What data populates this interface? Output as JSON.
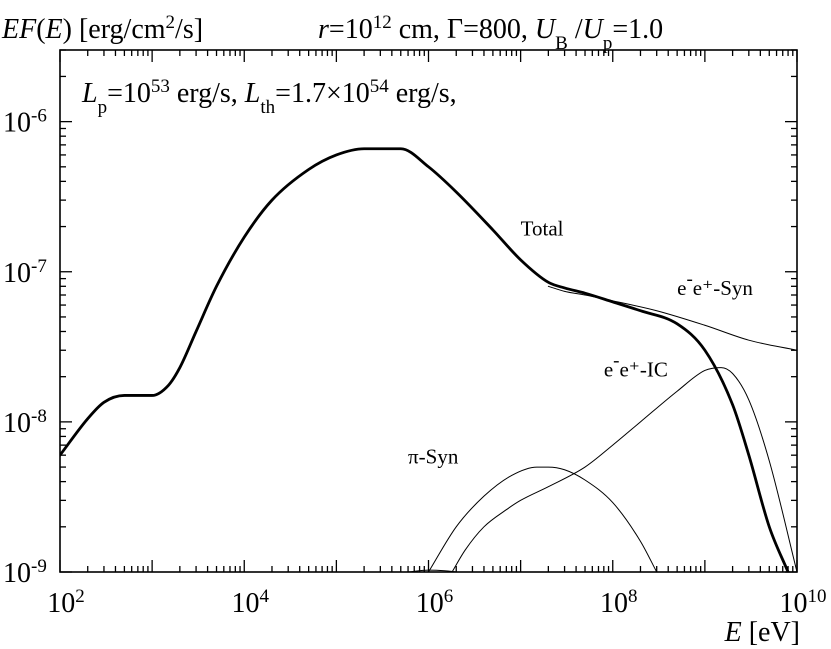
{
  "chart_data": {
    "type": "line",
    "header": {
      "ylabel": "EF(E) [erg/cm²/s]",
      "params": "r=10¹² cm, Γ=800, U_B /U_p=1.0"
    },
    "inset_text": "L_p=10⁵³ erg/s, L_th=1.7×10⁵⁴ erg/s,",
    "xlabel": "E [eV]",
    "xscale": "log",
    "yscale": "log",
    "xlim": [
      100,
      10000000000
    ],
    "ylim": [
      1e-09,
      3e-06
    ],
    "x_ticks": [
      {
        "value": 100,
        "label": "10^2"
      },
      {
        "value": 10000,
        "label": "10^4"
      },
      {
        "value": 1000000,
        "label": "10^6"
      },
      {
        "value": 100000000,
        "label": "10^8"
      },
      {
        "value": 10000000000,
        "label": "10^10"
      }
    ],
    "y_ticks": [
      {
        "value": 1e-09,
        "label": "10^-9"
      },
      {
        "value": 1e-08,
        "label": "10^-8"
      },
      {
        "value": 1e-07,
        "label": "10^-7"
      },
      {
        "value": 1e-06,
        "label": "10^-6"
      }
    ],
    "series": [
      {
        "name": "Total",
        "style": "bold",
        "x": [
          100,
          200,
          300,
          500,
          700,
          1000,
          1500,
          2000,
          3000,
          5000,
          10000,
          20000,
          50000,
          100000,
          200000,
          500000,
          1000000,
          2000000,
          5000000,
          10000000,
          20000000,
          30000000,
          50000000,
          100000000,
          200000000,
          500000000,
          1000000000,
          2000000000,
          3000000000,
          5000000000,
          8000000000
        ],
        "y": [
          6e-09,
          1.05e-08,
          1.35e-08,
          1.5e-08,
          1.5e-08,
          1.5e-08,
          1.75e-08,
          2.3e-08,
          4e-08,
          8e-08,
          1.7e-07,
          3e-07,
          4.8e-07,
          6e-07,
          6.6e-07,
          6.6e-07,
          5e-07,
          3.4e-07,
          1.9e-07,
          1.2e-07,
          8.5e-08,
          7.8e-08,
          7.2e-08,
          6.3e-08,
          5.5e-08,
          4.5e-08,
          3e-08,
          1.3e-08,
          6e-09,
          2e-09,
          1e-09
        ]
      },
      {
        "name": "e⁻e⁺-Syn",
        "style": "thin",
        "x": [
          20000000,
          30000000,
          50000000,
          100000000,
          300000000,
          1000000000,
          3000000000,
          10000000000
        ],
        "y": [
          8e-08,
          7.4e-08,
          7e-08,
          6.4e-08,
          5.5e-08,
          4.4e-08,
          3.5e-08,
          3e-08
        ]
      },
      {
        "name": "e⁻e⁺-IC",
        "style": "thin",
        "x": [
          1800000,
          2500000,
          4000000,
          7000000,
          10000000,
          20000000,
          50000000,
          100000000,
          200000000,
          500000000,
          1000000000,
          1500000000,
          2000000000,
          3000000000,
          5000000000,
          10000000000
        ],
        "y": [
          1e-09,
          1.4e-09,
          2e-09,
          2.6e-09,
          3e-09,
          3.7e-09,
          5e-09,
          7e-09,
          1e-08,
          1.6e-08,
          2.2e-08,
          2.3e-08,
          2.1e-08,
          1.4e-08,
          5.5e-09,
          1e-09
        ]
      },
      {
        "name": "π-Syn",
        "style": "thin",
        "x": [
          1000000,
          2000000,
          4000000,
          8000000,
          15000000,
          20000000,
          30000000,
          50000000,
          100000000,
          200000000,
          300000000
        ],
        "y": [
          1e-09,
          2e-09,
          3.2e-09,
          4.4e-09,
          5e-09,
          5e-09,
          4.8e-09,
          4.1e-09,
          2.9e-09,
          1.6e-09,
          1e-09
        ]
      },
      {
        "name": "",
        "style": "thin",
        "x": [
          600000,
          1000000,
          1500000,
          2000000
        ],
        "y": [
          1e-09,
          1.03e-09,
          1.02e-09,
          1e-09
        ]
      }
    ],
    "labels": [
      {
        "series": "Total",
        "text": "Total",
        "x": 10000000,
        "y": 1.75e-07
      },
      {
        "series": "e⁻e⁺-Syn",
        "text": "e⁻e⁺-Syn",
        "x": 500000000,
        "y": 7e-08
      },
      {
        "series": "e⁻e⁺-IC",
        "text": "e⁻e⁺-IC",
        "x": 80000000,
        "y": 2e-08
      },
      {
        "series": "π-Syn",
        "text": "π-Syn",
        "x": 600000,
        "y": 5.3e-09
      }
    ]
  }
}
